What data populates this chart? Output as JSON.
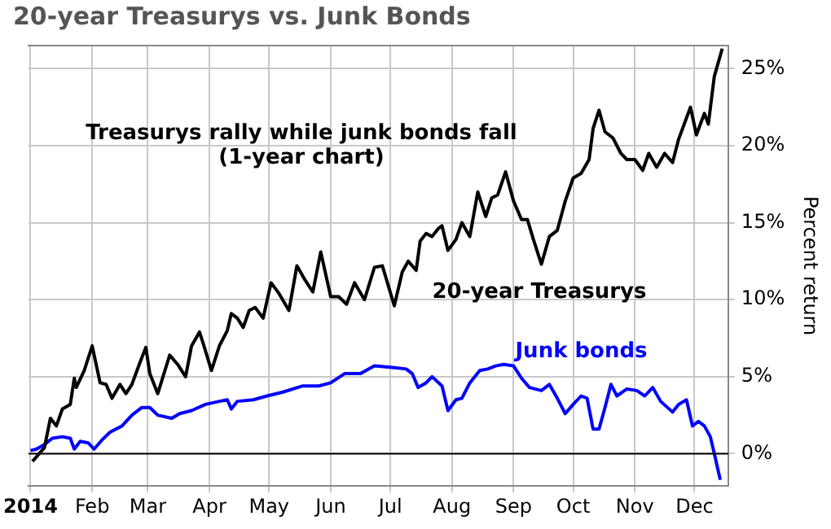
{
  "chart_data": {
    "type": "line",
    "title": "20-year Treasurys vs. Junk Bonds",
    "ylabel": "Percent return",
    "annotations": [
      "Treasurys rally while junk bonds fall\n(1-year chart)"
    ],
    "xlim": [
      "2013-12-31",
      "2014-12-18"
    ],
    "xticks": [
      {
        "value": "2014-01-01",
        "label": "2014"
      },
      {
        "value": "2014-02-01",
        "label": "Feb"
      },
      {
        "value": "2014-03-01",
        "label": "Mar"
      },
      {
        "value": "2014-04-01",
        "label": "Apr"
      },
      {
        "value": "2014-05-01",
        "label": "May"
      },
      {
        "value": "2014-06-01",
        "label": "Jun"
      },
      {
        "value": "2014-07-01",
        "label": "Jul"
      },
      {
        "value": "2014-08-01",
        "label": "Aug"
      },
      {
        "value": "2014-09-01",
        "label": "Sep"
      },
      {
        "value": "2014-10-01",
        "label": "Oct"
      },
      {
        "value": "2014-11-01",
        "label": "Nov"
      },
      {
        "value": "2014-12-01",
        "label": "Dec"
      }
    ],
    "ylim": [
      -2.1,
      26.5
    ],
    "yticks": [
      {
        "value": 0,
        "label": "0%"
      },
      {
        "value": 5,
        "label": "5%"
      },
      {
        "value": 10,
        "label": "10%"
      },
      {
        "value": 15,
        "label": "15%"
      },
      {
        "value": 20,
        "label": "20%"
      },
      {
        "value": 25,
        "label": "25%"
      }
    ],
    "grid": true,
    "legend": false,
    "marker": "none",
    "line_style": "solid",
    "ref_lines": [
      {
        "axis": "y",
        "value": 0,
        "color": "#000000"
      }
    ],
    "series": [
      {
        "name": "20-year Treasurys",
        "color": "#000000",
        "x": [
          "2014-01-02",
          "2014-01-04",
          "2014-01-08",
          "2014-01-11",
          "2014-01-14",
          "2014-01-17",
          "2014-01-21",
          "2014-01-23",
          "2014-01-24",
          "2014-01-28",
          "2014-02-01",
          "2014-02-05",
          "2014-02-08",
          "2014-02-11",
          "2014-02-15",
          "2014-02-18",
          "2014-02-21",
          "2014-02-25",
          "2014-02-28",
          "2014-03-02",
          "2014-03-06",
          "2014-03-12",
          "2014-03-16",
          "2014-03-20",
          "2014-03-23",
          "2014-03-27",
          "2014-03-29",
          "2014-04-02",
          "2014-04-06",
          "2014-04-10",
          "2014-04-12",
          "2014-04-15",
          "2014-04-18",
          "2014-04-21",
          "2014-04-24",
          "2014-04-28",
          "2014-05-02",
          "2014-05-06",
          "2014-05-11",
          "2014-05-15",
          "2014-05-19",
          "2014-05-23",
          "2014-05-27",
          "2014-06-01",
          "2014-06-05",
          "2014-06-09",
          "2014-06-13",
          "2014-06-18",
          "2014-06-23",
          "2014-06-27",
          "2014-07-03",
          "2014-07-07",
          "2014-07-10",
          "2014-07-14",
          "2014-07-16",
          "2014-07-19",
          "2014-07-22",
          "2014-07-25",
          "2014-07-27",
          "2014-07-30",
          "2014-08-03",
          "2014-08-06",
          "2014-08-10",
          "2014-08-14",
          "2014-08-18",
          "2014-08-21",
          "2014-08-24",
          "2014-08-28",
          "2014-09-01",
          "2014-09-05",
          "2014-09-08",
          "2014-09-11",
          "2014-09-15",
          "2014-09-19",
          "2014-09-23",
          "2014-09-27",
          "2014-10-01",
          "2014-10-05",
          "2014-10-09",
          "2014-10-11",
          "2014-10-14",
          "2014-10-17",
          "2014-10-21",
          "2014-10-25",
          "2014-10-28",
          "2014-11-01",
          "2014-11-05",
          "2014-11-08",
          "2014-11-12",
          "2014-11-16",
          "2014-11-20",
          "2014-11-23",
          "2014-11-29",
          "2014-12-02",
          "2014-12-06",
          "2014-12-08",
          "2014-12-11",
          "2014-12-15"
        ],
        "values": [
          -0.5,
          -0.2,
          0.4,
          2.3,
          1.8,
          2.9,
          3.2,
          4.9,
          4.3,
          5.4,
          7.0,
          4.6,
          4.5,
          3.6,
          4.5,
          3.9,
          4.5,
          5.9,
          6.9,
          5.2,
          3.9,
          6.4,
          5.8,
          5.0,
          7.0,
          7.9,
          7.1,
          5.4,
          7.0,
          8.0,
          9.1,
          8.8,
          8.2,
          9.3,
          9.5,
          8.8,
          11.1,
          10.4,
          9.3,
          12.2,
          11.3,
          10.5,
          13.1,
          10.2,
          10.2,
          9.7,
          11.1,
          10.0,
          12.1,
          12.2,
          9.6,
          11.8,
          12.5,
          11.9,
          13.8,
          14.3,
          14.1,
          14.6,
          14.8,
          13.2,
          13.9,
          15.0,
          14.1,
          17.0,
          15.4,
          16.6,
          16.8,
          18.3,
          16.4,
          15.2,
          15.2,
          13.9,
          12.3,
          14.1,
          14.5,
          16.4,
          17.9,
          18.2,
          19.1,
          21.1,
          22.3,
          20.9,
          20.5,
          19.5,
          19.1,
          19.1,
          18.4,
          19.5,
          18.6,
          19.5,
          18.9,
          20.4,
          22.5,
          20.7,
          22.1,
          21.4,
          24.5,
          26.3
        ]
      },
      {
        "name": "Junk bonds",
        "color": "#0000ff",
        "x": [
          "2014-01-01",
          "2014-01-04",
          "2014-01-08",
          "2014-01-12",
          "2014-01-17",
          "2014-01-21",
          "2014-01-23",
          "2014-01-26",
          "2014-01-30",
          "2014-02-02",
          "2014-02-06",
          "2014-02-10",
          "2014-02-16",
          "2014-02-21",
          "2014-02-26",
          "2014-03-02",
          "2014-03-06",
          "2014-03-13",
          "2014-03-17",
          "2014-03-23",
          "2014-03-30",
          "2014-04-06",
          "2014-04-10",
          "2014-04-12",
          "2014-04-15",
          "2014-04-23",
          "2014-04-30",
          "2014-05-08",
          "2014-05-18",
          "2014-05-26",
          "2014-06-01",
          "2014-06-08",
          "2014-06-16",
          "2014-06-23",
          "2014-07-02",
          "2014-07-09",
          "2014-07-12",
          "2014-07-15",
          "2014-07-19",
          "2014-07-22",
          "2014-07-27",
          "2014-07-30",
          "2014-08-03",
          "2014-08-06",
          "2014-08-10",
          "2014-08-15",
          "2014-08-19",
          "2014-08-23",
          "2014-08-27",
          "2014-09-01",
          "2014-09-05",
          "2014-09-09",
          "2014-09-15",
          "2014-09-19",
          "2014-09-23",
          "2014-09-27",
          "2014-10-01",
          "2014-10-05",
          "2014-10-08",
          "2014-10-11",
          "2014-10-14",
          "2014-10-17",
          "2014-10-20",
          "2014-10-23",
          "2014-10-28",
          "2014-11-02",
          "2014-11-06",
          "2014-11-10",
          "2014-11-14",
          "2014-11-20",
          "2014-11-23",
          "2014-11-27",
          "2014-11-30",
          "2014-12-03",
          "2014-12-06",
          "2014-12-09",
          "2014-12-11",
          "2014-12-14"
        ],
        "values": [
          0.2,
          0.3,
          0.6,
          1.0,
          1.1,
          1.0,
          0.3,
          0.8,
          0.7,
          0.3,
          0.9,
          1.4,
          1.8,
          2.5,
          3.0,
          3.0,
          2.5,
          2.3,
          2.6,
          2.8,
          3.2,
          3.4,
          3.5,
          2.9,
          3.4,
          3.5,
          3.75,
          4.0,
          4.4,
          4.4,
          4.6,
          5.2,
          5.2,
          5.7,
          5.6,
          5.5,
          5.2,
          4.3,
          4.6,
          5.0,
          4.4,
          2.8,
          3.5,
          3.6,
          4.6,
          5.4,
          5.5,
          5.7,
          5.8,
          5.7,
          4.9,
          4.3,
          4.1,
          4.5,
          3.6,
          2.6,
          3.2,
          3.75,
          3.6,
          1.6,
          1.6,
          3.0,
          4.5,
          3.75,
          4.2,
          4.1,
          3.75,
          4.3,
          3.4,
          2.7,
          3.2,
          3.5,
          1.8,
          2.1,
          1.8,
          1.1,
          0,
          -1.7
        ]
      }
    ]
  }
}
